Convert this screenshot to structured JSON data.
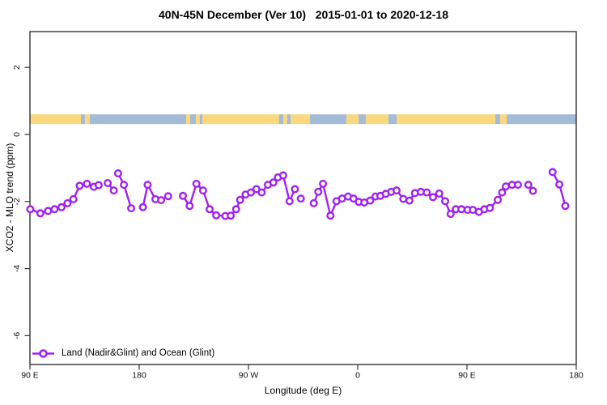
{
  "title": "40N-45N December (Ver 10)   2015-01-01 to 2020-12-18",
  "chart_data": {
    "type": "scatter",
    "title": "40N-45N December (Ver 10)   2015-01-01 to 2020-12-18",
    "xlabel": "Longitude (deg E)",
    "ylabel": "XCO2 - MLO trend (ppm)",
    "xlim": [
      90,
      540
    ],
    "ylim": [
      -6.9,
      3.1
    ],
    "grid": false,
    "legend": {
      "label": "Land (Nadir&Glint) and Ocean (Glint)",
      "position": "bottom-left",
      "marker": "open-circle-on-line"
    },
    "series_color": "#A020F0",
    "marker_fill": "#FFFFFF",
    "x_ticks": [
      {
        "value": 90,
        "label": "90 E"
      },
      {
        "value": 180,
        "label": "180"
      },
      {
        "value": 270,
        "label": "90 W"
      },
      {
        "value": 360,
        "label": "0"
      },
      {
        "value": 450,
        "label": "90 E"
      },
      {
        "value": 540,
        "label": "180"
      }
    ],
    "y_ticks": [
      {
        "value": 2,
        "label": "2"
      },
      {
        "value": 0,
        "label": "0"
      },
      {
        "value": -2,
        "label": "-2"
      },
      {
        "value": -4,
        "label": "-4"
      },
      {
        "value": -6,
        "label": "-6"
      }
    ],
    "land_ocean_band": {
      "y_top": 0.6,
      "y_bottom": 0.31,
      "land_color": "#FBD77E",
      "ocean_color": "#A4BBD8",
      "segments": [
        {
          "from": 90.0,
          "to": 132.0,
          "type": "land"
        },
        {
          "from": 132.0,
          "to": 135.3,
          "type": "ocean"
        },
        {
          "from": 135.3,
          "to": 139.3,
          "type": "land"
        },
        {
          "from": 139.3,
          "to": 218.7,
          "type": "ocean"
        },
        {
          "from": 218.7,
          "to": 222.0,
          "type": "land"
        },
        {
          "from": 222.0,
          "to": 226.7,
          "type": "ocean"
        },
        {
          "from": 226.7,
          "to": 230.0,
          "type": "land"
        },
        {
          "from": 230.0,
          "to": 232.0,
          "type": "ocean"
        },
        {
          "from": 232.0,
          "to": 295.3,
          "type": "land"
        },
        {
          "from": 295.3,
          "to": 298.7,
          "type": "ocean"
        },
        {
          "from": 298.7,
          "to": 302.0,
          "type": "land"
        },
        {
          "from": 302.0,
          "to": 304.7,
          "type": "ocean"
        },
        {
          "from": 304.7,
          "to": 320.7,
          "type": "land"
        },
        {
          "from": 320.7,
          "to": 350.7,
          "type": "ocean"
        },
        {
          "from": 350.7,
          "to": 360.7,
          "type": "land"
        },
        {
          "from": 360.7,
          "to": 366.7,
          "type": "ocean"
        },
        {
          "from": 366.7,
          "to": 385.3,
          "type": "land"
        },
        {
          "from": 385.3,
          "to": 392.0,
          "type": "ocean"
        },
        {
          "from": 392.0,
          "to": 473.3,
          "type": "land"
        },
        {
          "from": 473.3,
          "to": 477.3,
          "type": "ocean"
        },
        {
          "from": 477.3,
          "to": 482.7,
          "type": "land"
        },
        {
          "from": 482.7,
          "to": 540.0,
          "type": "ocean"
        }
      ]
    },
    "series": [
      {
        "name": "Land (Nadir&Glint) and Ocean (Glint)",
        "segments": [
          [
            [
              90.3,
              -2.23
            ],
            [
              98.6,
              -2.35
            ],
            [
              104.9,
              -2.28
            ],
            [
              110.3,
              -2.23
            ],
            [
              116.0,
              -2.17
            ],
            [
              120.9,
              -2.05
            ],
            [
              125.8,
              -1.93
            ],
            [
              130.9,
              -1.53
            ],
            [
              136.9,
              -1.47
            ],
            [
              142.6,
              -1.56
            ],
            [
              146.6,
              -1.51
            ]
          ],
          [
            [
              154.1,
              -1.45
            ],
            [
              159.1,
              -1.67
            ]
          ],
          [
            [
              162.6,
              -1.16
            ],
            [
              167.4,
              -1.5
            ],
            [
              173.4,
              -2.2
            ]
          ],
          [
            [
              183.1,
              -2.17
            ],
            [
              186.9,
              -1.5
            ],
            [
              193.3,
              -1.93
            ],
            [
              198.0,
              -1.96
            ],
            [
              203.9,
              -1.84
            ]
          ],
          [
            [
              216.0,
              -1.83
            ],
            [
              221.5,
              -2.13
            ],
            [
              227.1,
              -1.47
            ],
            [
              232.6,
              -1.67
            ],
            [
              238.0,
              -2.23
            ],
            [
              243.4,
              -2.41
            ],
            [
              250.9,
              -2.43
            ],
            [
              255.4,
              -2.42
            ],
            [
              259.9,
              -2.23
            ],
            [
              263.1,
              -1.95
            ],
            [
              267.6,
              -1.79
            ],
            [
              272.0,
              -1.73
            ],
            [
              276.5,
              -1.63
            ],
            [
              280.9,
              -1.73
            ],
            [
              286.0,
              -1.5
            ],
            [
              290.5,
              -1.43
            ],
            [
              294.3,
              -1.28
            ],
            [
              298.6,
              -1.22
            ],
            [
              303.9,
              -1.99
            ],
            [
              308.3,
              -1.63
            ]
          ],
          [
            [
              313.1,
              -1.91
            ]
          ],
          [
            [
              323.8,
              -2.05
            ],
            [
              327.5,
              -1.71
            ],
            [
              331.4,
              -1.47
            ],
            [
              337.5,
              -2.42
            ],
            [
              342.5,
              -1.99
            ],
            [
              347.1,
              -1.91
            ],
            [
              352.0,
              -1.85
            ],
            [
              356.5,
              -1.91
            ],
            [
              360.9,
              -2.01
            ],
            [
              365.4,
              -2.03
            ],
            [
              370.3,
              -1.97
            ],
            [
              374.6,
              -1.85
            ],
            [
              378.6,
              -1.83
            ],
            [
              383.1,
              -1.77
            ],
            [
              387.6,
              -1.71
            ],
            [
              392.0,
              -1.67
            ],
            [
              397.5,
              -1.92
            ],
            [
              402.6,
              -1.97
            ],
            [
              407.1,
              -1.75
            ],
            [
              412.0,
              -1.71
            ],
            [
              416.9,
              -1.73
            ],
            [
              422.0,
              -1.87
            ],
            [
              427.1,
              -1.76
            ],
            [
              432.0,
              -1.99
            ],
            [
              436.5,
              -2.37
            ],
            [
              440.9,
              -2.23
            ],
            [
              445.4,
              -2.23
            ],
            [
              450.5,
              -2.25
            ],
            [
              454.9,
              -2.25
            ],
            [
              459.8,
              -2.31
            ],
            [
              464.3,
              -2.23
            ],
            [
              468.9,
              -2.19
            ],
            [
              475.4,
              -1.95
            ],
            [
              478.9,
              -1.73
            ],
            [
              482.0,
              -1.55
            ],
            [
              487.1,
              -1.5
            ],
            [
              492.0,
              -1.5
            ]
          ],
          [
            [
              500.5,
              -1.5
            ],
            [
              504.3,
              -1.68
            ]
          ],
          [
            [
              520.5,
              -1.12
            ],
            [
              526.1,
              -1.49
            ],
            [
              531.0,
              -2.13
            ]
          ]
        ]
      }
    ]
  }
}
